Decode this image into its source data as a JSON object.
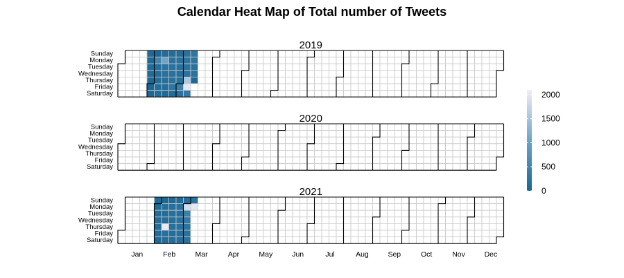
{
  "chart_data": {
    "type": "heatmap",
    "title": "Calendar Heat Map of Total number of Tweets",
    "years": [
      "2019",
      "2020",
      "2021"
    ],
    "weekdays": [
      "Sunday",
      "Monday",
      "Tuesday",
      "Wednesday",
      "Thursday",
      "Friday",
      "Saturday"
    ],
    "months": [
      "Jan",
      "Feb",
      "Mar",
      "Apr",
      "May",
      "Jun",
      "Jul",
      "Aug",
      "Sep",
      "Oct",
      "Nov",
      "Dec"
    ],
    "legend": {
      "ticks": [
        0,
        500,
        1000,
        1500,
        2000
      ],
      "min": 0,
      "max": 2100,
      "low_color": "#1a6795",
      "mid_color": "#6fa3c8",
      "high_color": "#f1eef6"
    },
    "empty_color": "#ffffff",
    "grid_color": "#c8c8c8",
    "data": {
      "2019": [
        [
          "2019-01-27",
          60
        ],
        [
          "2019-01-28",
          50
        ],
        [
          "2019-01-29",
          80
        ],
        [
          "2019-01-30",
          70
        ],
        [
          "2019-01-31",
          30
        ],
        [
          "2019-02-01",
          0
        ],
        [
          "2019-02-02",
          10
        ],
        [
          "2019-02-03",
          20
        ],
        [
          "2019-02-04",
          500
        ],
        [
          "2019-02-05",
          140
        ],
        [
          "2019-02-06",
          130
        ],
        [
          "2019-02-07",
          120
        ],
        [
          "2019-02-08",
          110
        ],
        [
          "2019-02-09",
          100
        ],
        [
          "2019-02-10",
          90
        ],
        [
          "2019-02-11",
          1050
        ],
        [
          "2019-02-12",
          220
        ],
        [
          "2019-02-13",
          180
        ],
        [
          "2019-02-14",
          150
        ],
        [
          "2019-02-15",
          120
        ],
        [
          "2019-02-16",
          80
        ],
        [
          "2019-02-17",
          100
        ],
        [
          "2019-02-18",
          210
        ],
        [
          "2019-02-19",
          200
        ],
        [
          "2019-02-20",
          190
        ],
        [
          "2019-02-21",
          170
        ],
        [
          "2019-02-22",
          260
        ],
        [
          "2019-02-23",
          90
        ],
        [
          "2019-02-24",
          110
        ],
        [
          "2019-02-25",
          190
        ],
        [
          "2019-02-26",
          170
        ],
        [
          "2019-02-27",
          160
        ],
        [
          "2019-02-28",
          150
        ],
        [
          "2019-03-01",
          420
        ],
        [
          "2019-03-02",
          200
        ],
        [
          "2019-03-03",
          180
        ],
        [
          "2019-03-04",
          230
        ],
        [
          "2019-03-05",
          210
        ],
        [
          "2019-03-06",
          200
        ],
        [
          "2019-03-07",
          1550
        ],
        [
          "2019-03-08",
          2000
        ],
        [
          "2019-03-09",
          320
        ],
        [
          "2019-03-10",
          250
        ],
        [
          "2019-03-11",
          230
        ],
        [
          "2019-03-12",
          210
        ],
        [
          "2019-03-13",
          190
        ],
        [
          "2019-03-14",
          20
        ]
      ],
      "2020": [],
      "2021": [
        [
          "2021-01-31",
          40
        ],
        [
          "2021-02-01",
          80
        ],
        [
          "2021-02-02",
          90
        ],
        [
          "2021-02-03",
          100
        ],
        [
          "2021-02-04",
          110
        ],
        [
          "2021-02-05",
          90
        ],
        [
          "2021-02-06",
          70
        ],
        [
          "2021-02-07",
          30
        ],
        [
          "2021-02-08",
          120
        ],
        [
          "2021-02-09",
          110
        ],
        [
          "2021-02-10",
          130
        ],
        [
          "2021-02-11",
          2050
        ],
        [
          "2021-02-12",
          150
        ],
        [
          "2021-02-13",
          110
        ],
        [
          "2021-02-14",
          40
        ],
        [
          "2021-02-15",
          160
        ],
        [
          "2021-02-16",
          150
        ],
        [
          "2021-02-17",
          140
        ],
        [
          "2021-02-18",
          150
        ],
        [
          "2021-02-19",
          130
        ],
        [
          "2021-02-20",
          120
        ],
        [
          "2021-02-21",
          60
        ],
        [
          "2021-02-22",
          170
        ],
        [
          "2021-02-23",
          160
        ],
        [
          "2021-02-24",
          180
        ],
        [
          "2021-02-25",
          170
        ],
        [
          "2021-02-26",
          150
        ],
        [
          "2021-02-27",
          140
        ],
        [
          "2021-02-28",
          100
        ],
        [
          "2021-03-01",
          1850
        ],
        [
          "2021-03-02",
          420
        ],
        [
          "2021-03-03",
          300
        ],
        [
          "2021-03-04",
          220
        ],
        [
          "2021-03-05",
          190
        ],
        [
          "2021-03-06",
          180
        ],
        [
          "2021-03-07",
          200
        ],
        [
          "2021-03-08",
          2000
        ]
      ]
    }
  }
}
